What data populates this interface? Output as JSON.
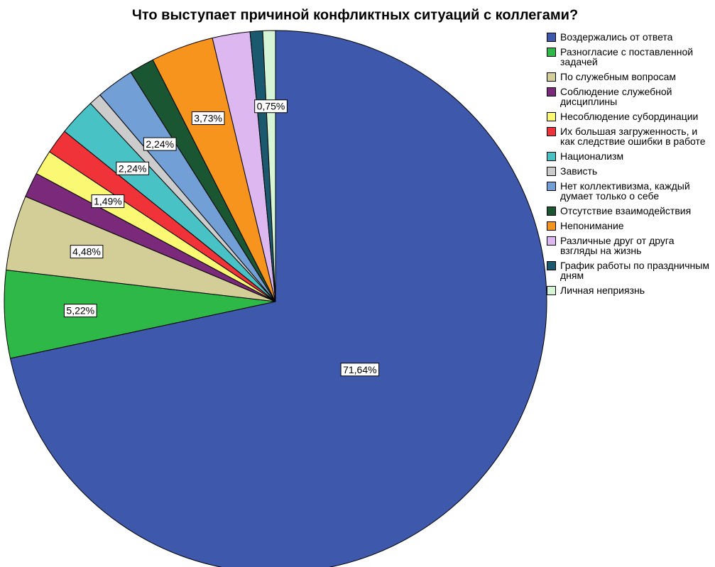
{
  "chart_data": {
    "type": "pie",
    "title": "Что выступает причиной конфликтных ситуаций с коллегами?",
    "categories": [
      "Воздержались от ответа",
      "Разногласие с поставленной задачей",
      "По служебным вопросам",
      "Соблюдение служебной дисциплины",
      "Несоблюдение субординации",
      "Их большая загруженность, и как следствие ошибки в работе",
      "Национализм",
      "Зависть",
      "Нет коллективизма, каждый думает только о себе",
      "Отсутствие взаимодействия",
      "Непонимание",
      "Различные друг от друга взгляды на жизнь",
      "График работы по праздничным дням",
      "Личная неприязнь"
    ],
    "values": [
      71.64,
      5.22,
      4.48,
      1.49,
      1.49,
      1.49,
      2.24,
      0.75,
      2.24,
      1.49,
      3.73,
      2.24,
      0.75,
      0.75
    ],
    "value_labels": [
      "71,64%",
      "5,22%",
      "4,48%",
      null,
      "1,49%",
      null,
      "2,24%",
      null,
      "2,24%",
      null,
      "3,73%",
      null,
      null,
      "0,75%"
    ],
    "colors": [
      "#3e58ac",
      "#2eb848",
      "#d3ce97",
      "#7b2a7b",
      "#fbf873",
      "#ef3338",
      "#48c2c5",
      "#cccccc",
      "#72a0d6",
      "#1a5632",
      "#f7941d",
      "#ddb8f0",
      "#1b5a6e",
      "#d5f5d6"
    ],
    "legend": "right"
  }
}
